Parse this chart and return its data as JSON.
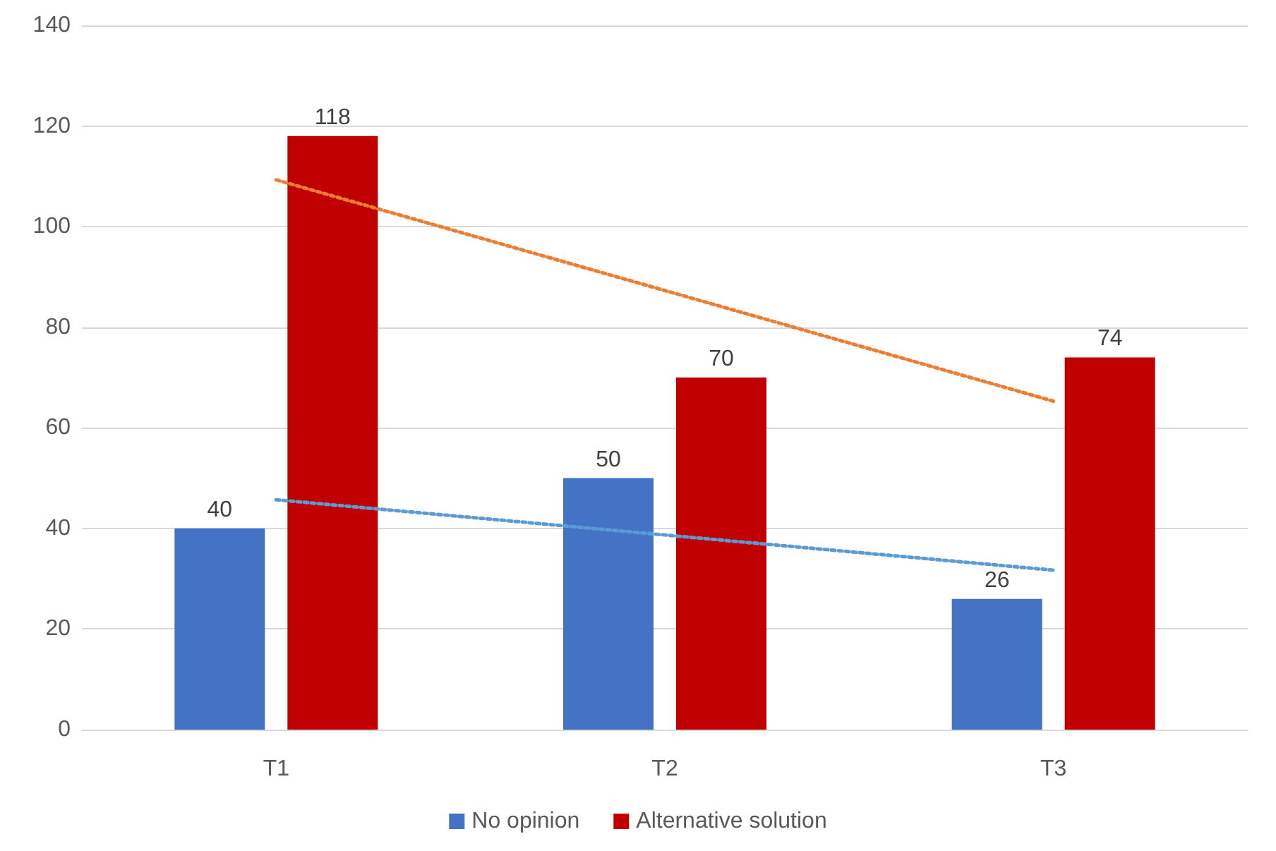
{
  "chart_data": {
    "type": "bar",
    "categories": [
      "T1",
      "T2",
      "T3"
    ],
    "series": [
      {
        "name": "No opinion",
        "color": "#4472c4",
        "values": [
          40,
          50,
          26
        ],
        "data_labels": true
      },
      {
        "name": "Alternative solution",
        "color": "#c00000",
        "values": [
          118,
          70,
          74
        ],
        "data_labels": true
      },
      {
        "type": "line",
        "x": [
          "T1",
          "T2",
          "T3"
        ],
        "color": "#5b9bd5",
        "values": [
          45.7,
          38.7,
          31.7
        ],
        "line_style": "dotted",
        "marker": "none"
      },
      {
        "type": "line",
        "x": [
          "T1",
          "T2",
          "T3"
        ],
        "color": "#ed7d31",
        "values": [
          109.3,
          87.3,
          65.3
        ],
        "line_style": "dotted",
        "marker": "none"
      }
    ],
    "ylim": [
      0,
      140
    ],
    "yticks": [
      0,
      20,
      40,
      60,
      80,
      100,
      120,
      140
    ],
    "grid": "y",
    "legend": "bottom"
  }
}
